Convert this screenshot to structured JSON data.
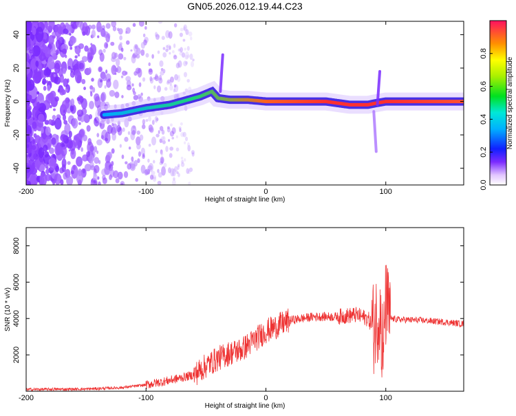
{
  "title": "GN05.2026.012.19.44.C23",
  "colors": {
    "signal": "#ee3333",
    "background": "#ffffff",
    "noise": "#7a2bff"
  },
  "chart_data": [
    {
      "type": "heatmap",
      "name": "spectrogram",
      "xlabel": "Height of straight line (km)",
      "ylabel": "Frequency (Hz)",
      "xlim": [
        -200,
        165
      ],
      "ylim": [
        -50,
        48
      ],
      "xticks": [
        -200,
        -100,
        0,
        100
      ],
      "yticks": [
        -40,
        -20,
        0,
        20,
        40
      ],
      "colorbar": {
        "label": "Normalized spectral amplitude",
        "range": [
          0,
          1
        ],
        "ticks": [
          0.0,
          0.2,
          0.4,
          0.6,
          0.8
        ]
      },
      "ridge": {
        "x": [
          -135,
          -120,
          -100,
          -80,
          -65,
          -55,
          -45,
          -40,
          -30,
          -15,
          0,
          20,
          50,
          70,
          85,
          92,
          100,
          130,
          165
        ],
        "y": [
          -8,
          -7,
          -4,
          -2,
          1,
          3,
          6,
          2,
          1,
          1,
          0,
          0,
          0,
          -2,
          -2,
          -1,
          0,
          0,
          0
        ]
      }
    },
    {
      "type": "line",
      "name": "snr",
      "xlabel": "Height of straight line (km)",
      "ylabel": "SNR (10 * v/v)",
      "xlim": [
        -200,
        165
      ],
      "ylim": [
        0,
        9000
      ],
      "xticks": [
        -200,
        -100,
        0,
        100
      ],
      "yticks": [
        2000,
        4000,
        6000,
        8000
      ],
      "profile": {
        "x": [
          -200,
          -150,
          -120,
          -100,
          -80,
          -60,
          -50,
          -40,
          -30,
          -20,
          -10,
          0,
          10,
          20,
          30,
          40,
          60,
          75,
          85,
          90,
          95,
          98,
          100,
          103,
          110,
          130,
          150,
          165
        ],
        "y": [
          100,
          120,
          200,
          350,
          600,
          900,
          1400,
          1800,
          2100,
          2300,
          2800,
          3300,
          3600,
          3900,
          4000,
          4100,
          4100,
          4200,
          4000,
          3500,
          4500,
          2000,
          4800,
          4000,
          3950,
          3900,
          3800,
          3700
        ]
      }
    }
  ]
}
